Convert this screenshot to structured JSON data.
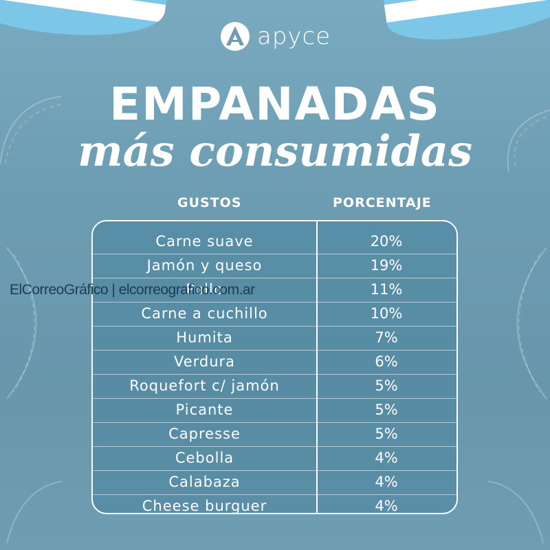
{
  "brand": {
    "name": "apyce"
  },
  "title": "EMPANADAS",
  "subtitle": "más consumidas",
  "table": {
    "headers": {
      "flavors": "GUSTOS",
      "percent": "PORCENTAJE"
    },
    "rows": [
      {
        "flavor": "Carne suave",
        "percent": "20%"
      },
      {
        "flavor": "Jamón y queso",
        "percent": "19%"
      },
      {
        "flavor": "Pollo",
        "percent": "11%"
      },
      {
        "flavor": "Carne a cuchillo",
        "percent": "10%"
      },
      {
        "flavor": "Humita",
        "percent": "7%"
      },
      {
        "flavor": "Verdura",
        "percent": "6%"
      },
      {
        "flavor": "Roquefort c/ jamón",
        "percent": "5%"
      },
      {
        "flavor": "Picante",
        "percent": "5%"
      },
      {
        "flavor": "Capresse",
        "percent": "5%"
      },
      {
        "flavor": "Cebolla",
        "percent": "4%"
      },
      {
        "flavor": "Calabaza",
        "percent": "4%"
      },
      {
        "flavor": "Cheese burguer",
        "percent": "4%"
      }
    ]
  },
  "watermark": "ElCorreoGráfico | elcorreografico.com.ar",
  "colors": {
    "background": "#6d9db2",
    "flag_blue": "#7cc7e8",
    "text": "#ffffff"
  }
}
